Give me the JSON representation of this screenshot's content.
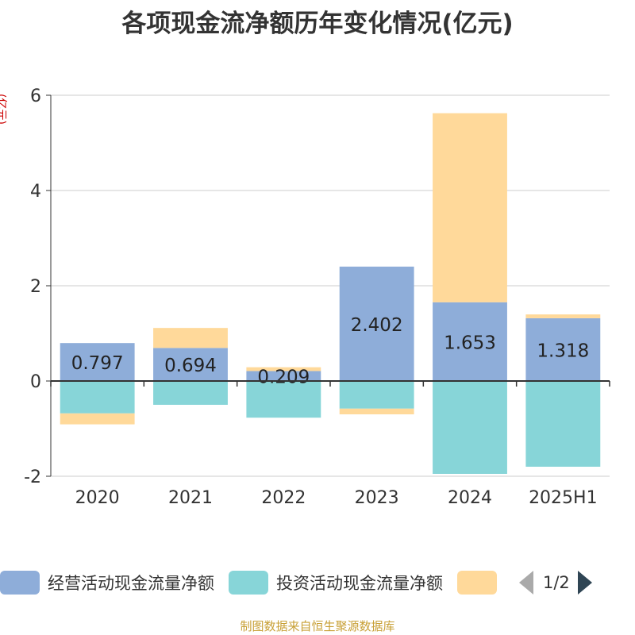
{
  "title": "各项现金流净额历年变化情况(亿元)",
  "y_unit": "(亿元)",
  "source": "制图数据来自恒生聚源数据库",
  "legend": {
    "items": [
      {
        "label": "经营活动现金流量净额",
        "color": "#8eadd9"
      },
      {
        "label": "投资活动现金流量净额",
        "color": "#87d5d8"
      },
      {
        "label": "",
        "color": "#ffd99a"
      }
    ],
    "page": "1/2"
  },
  "chart_data": {
    "type": "bar",
    "stacked": true,
    "categories": [
      "2020",
      "2021",
      "2022",
      "2023",
      "2024",
      "2025H1"
    ],
    "ylim": [
      -2,
      6
    ],
    "yticks": [
      -2,
      0,
      2,
      4,
      6
    ],
    "ytick_labels": [
      "-2",
      "0",
      "2",
      "4",
      "6"
    ],
    "grid": true,
    "legend_position": "bottom",
    "series": [
      {
        "name": "经营活动现金流量净额",
        "color": "#8eadd9",
        "values": [
          0.797,
          0.694,
          0.209,
          2.402,
          1.653,
          1.318
        ],
        "labels": [
          "0.797",
          "0.694",
          "0.209",
          "2.402",
          "1.653",
          "1.318"
        ]
      },
      {
        "name": "投资活动现金流量净额",
        "color": "#87d5d8",
        "values": [
          -0.68,
          -0.5,
          -0.77,
          -0.58,
          -1.95,
          -1.8
        ]
      },
      {
        "color": "#ffd99a",
        "values": [
          -0.23,
          0.42,
          0.08,
          -0.12,
          3.97,
          0.08
        ]
      }
    ]
  }
}
